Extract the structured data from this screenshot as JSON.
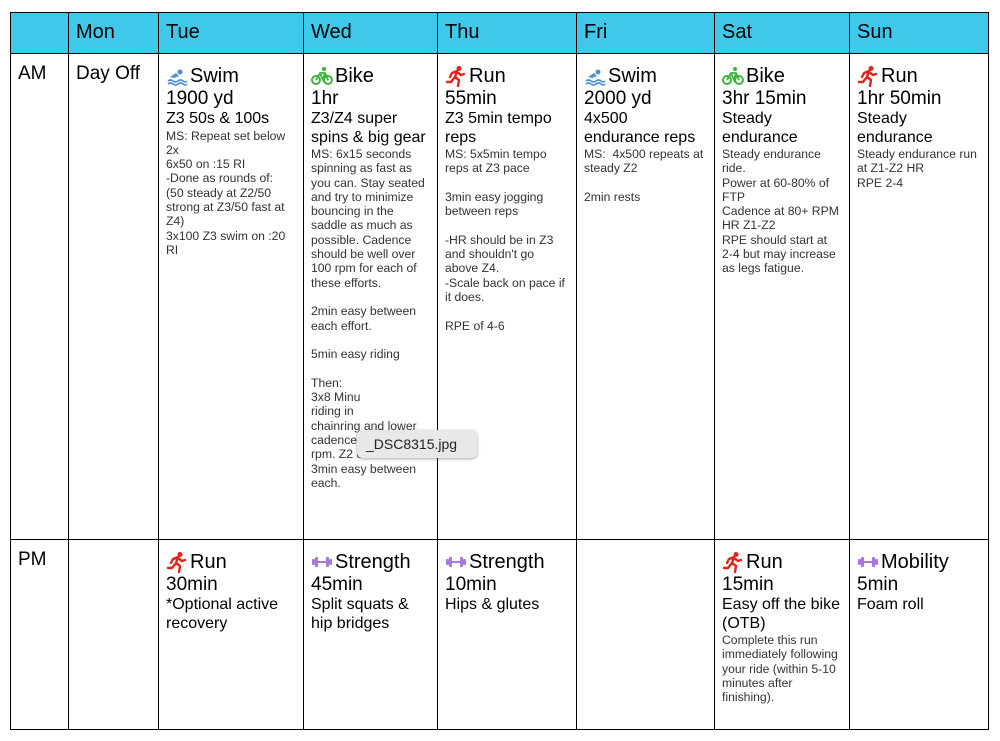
{
  "header": {
    "corner": "",
    "days": [
      "Mon",
      "Tue",
      "Wed",
      "Thu",
      "Fri",
      "Sat",
      "Sun"
    ]
  },
  "rows": {
    "am_label": "AM",
    "pm_label": "PM"
  },
  "am": {
    "mon": {
      "text": "Day Off"
    },
    "tue": {
      "icon": "swim-icon",
      "title": "Swim",
      "duration": "1900 yd",
      "subtitle": "Z3 50s & 100s",
      "details": "MS: Repeat set below 2x\n6x50 on :15 RI\n-Done as rounds of:\n(50 steady at Z2/50 strong at Z3/50 fast at Z4)\n3x100 Z3 swim on :20 RI"
    },
    "wed": {
      "icon": "bike-icon",
      "title": "Bike",
      "duration": "1hr",
      "subtitle": "Z3/Z4 super spins & big gear",
      "details": "MS: 6x15 seconds spinning as fast as you can. Stay seated and try to minimize bouncing in the saddle as much as possible. Cadence should be well over 100 rpm for each of these efforts.\n\n2min easy between each effort.\n\n5min easy riding\n\nThen:\n3x8 Minu\nriding in\nchainring and lower cadence of 55-70 rpm. Z2 or Z3 effort.\n3min easy between each."
    },
    "thu": {
      "icon": "run-icon",
      "title": "Run",
      "duration": "55min",
      "subtitle": "Z3 5min tempo reps",
      "details": "MS: 5x5min tempo reps at Z3 pace\n\n3min easy jogging between reps\n\n-HR should be in Z3 and shouldn't go above Z4.\n-Scale back on pace if it does.\n\nRPE of 4-6"
    },
    "fri": {
      "icon": "swim-icon",
      "title": "Swim",
      "duration": "2000 yd",
      "subtitle": "4x500 endurance reps",
      "details": "MS:  4x500 repeats at steady Z2\n\n2min rests"
    },
    "sat": {
      "icon": "bike-icon",
      "title": "Bike",
      "duration": "3hr 15min",
      "subtitle": "Steady endurance",
      "details": "Steady endurance ride.\nPower at 60-80% of FTP\nCadence at 80+ RPM\nHR Z1-Z2\nRPE should start at 2-4 but may increase as legs fatigue."
    },
    "sun": {
      "icon": "run-icon",
      "title": "Run",
      "duration": "1hr 50min",
      "subtitle": "Steady endurance",
      "details": "Steady endurance run at Z1-Z2 HR\nRPE 2-4"
    }
  },
  "pm": {
    "tue": {
      "icon": "run-icon",
      "title": "Run",
      "duration": "30min",
      "subtitle": "*Optional active recovery"
    },
    "wed": {
      "icon": "strength-icon",
      "title": "Strength",
      "duration": "45min",
      "subtitle": "Split squats & hip bridges"
    },
    "thu": {
      "icon": "strength-icon",
      "title": "Strength",
      "duration": "10min",
      "subtitle": "Hips & glutes"
    },
    "sat": {
      "icon": "run-icon",
      "title": "Run",
      "duration": "15min",
      "subtitle": "Easy off the bike (OTB)",
      "details": "Complete this run immediately following your ride (within 5-10 minutes after finishing)."
    },
    "sun": {
      "icon": "strength-icon",
      "title": "Mobility",
      "duration": "5min",
      "subtitle": "Foam roll"
    }
  },
  "tooltip": {
    "text": "_DSC8315.jpg"
  },
  "colors": {
    "header_bg": "#3ec8ea",
    "swim": "#4a8fd8",
    "bike": "#3bb53b",
    "run": "#e0261b",
    "strength": "#a678e0"
  }
}
